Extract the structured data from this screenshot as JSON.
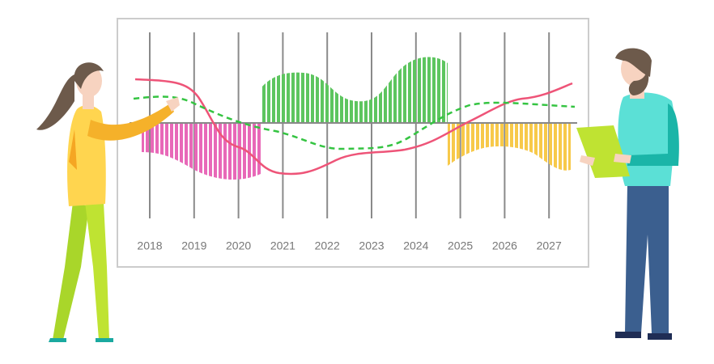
{
  "board": {
    "years": [
      "2018",
      "2019",
      "2020",
      "2021",
      "2022",
      "2023",
      "2024",
      "2025",
      "2026",
      "2027"
    ]
  }
}
